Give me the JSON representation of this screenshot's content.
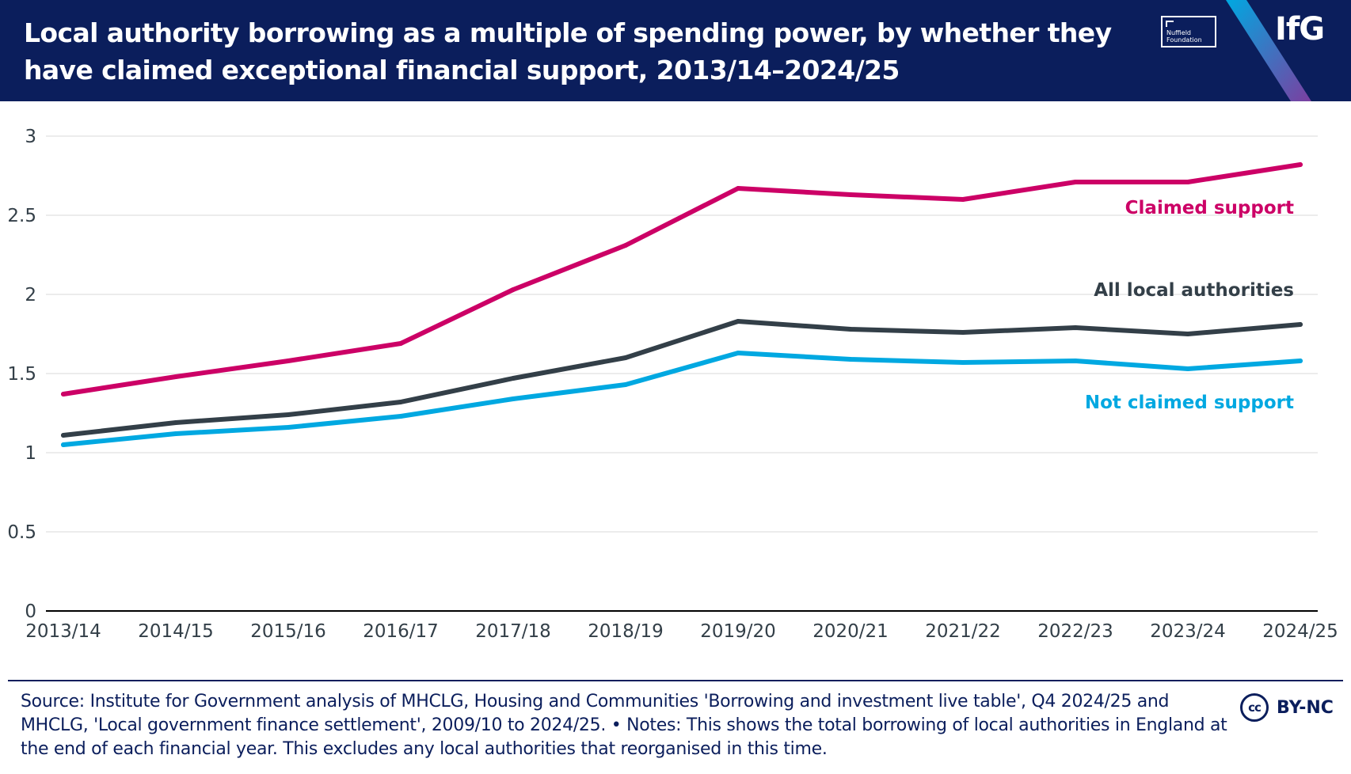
{
  "header": {
    "title": "Local authority borrowing as a multiple of spending power, by whether they have claimed exceptional financial support, 2013/14–2024/25",
    "partner_logo_text": "Nuffield Foundation",
    "brand_logo_text": "IfG"
  },
  "colors": {
    "header_bg": "#0b1e5c",
    "claimed": "#cc0066",
    "all": "#333f48",
    "not_claimed": "#00a8e1",
    "grid": "#e6e6e6",
    "axis_text": "#333f48"
  },
  "chart_data": {
    "type": "line",
    "title": "Local authority borrowing as a multiple of spending power, by whether they have claimed exceptional financial support, 2013/14–2024/25",
    "xlabel": "",
    "ylabel": "",
    "ylim": [
      0,
      3
    ],
    "yticks": [
      "0",
      "0.5",
      "1",
      "1.5",
      "2",
      "2.5",
      "3"
    ],
    "grid": true,
    "categories": [
      "2013/14",
      "2014/15",
      "2015/16",
      "2016/17",
      "2017/18",
      "2018/19",
      "2019/20",
      "2020/21",
      "2021/22",
      "2022/23",
      "2023/24",
      "2024/25"
    ],
    "series": [
      {
        "name": "Claimed support",
        "key": "claimed",
        "values": [
          1.37,
          1.48,
          1.58,
          1.69,
          2.03,
          2.31,
          2.67,
          2.63,
          2.6,
          2.71,
          2.71,
          2.82
        ]
      },
      {
        "name": "All local authorities",
        "key": "all",
        "values": [
          1.11,
          1.19,
          1.24,
          1.32,
          1.47,
          1.6,
          1.83,
          1.78,
          1.76,
          1.79,
          1.75,
          1.81
        ]
      },
      {
        "name": "Not claimed support",
        "key": "not_claimed",
        "values": [
          1.05,
          1.12,
          1.16,
          1.23,
          1.34,
          1.43,
          1.63,
          1.59,
          1.57,
          1.58,
          1.53,
          1.58
        ]
      }
    ]
  },
  "footer": {
    "source": "Source: Institute for Government analysis of MHCLG, Housing and Communities 'Borrowing and investment live table', Q4 2024/25 and MHCLG, 'Local government finance settlement', 2009/10 to 2024/25. • Notes: This shows the total borrowing of local authorities in England at the end of each financial year. This excludes any local authorities that reorganised in this time.",
    "license_icon": "cc",
    "license": "BY-NC"
  }
}
